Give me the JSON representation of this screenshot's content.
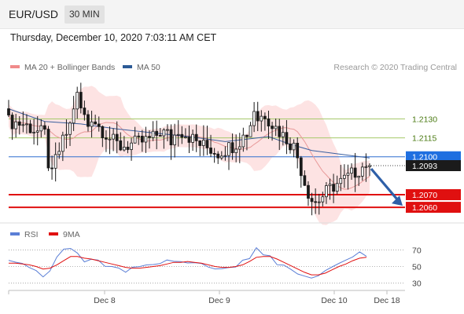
{
  "header": {
    "pair": "EUR/USD",
    "interval": "30 MIN"
  },
  "timestamp": "Thursday, December 10, 2020 7:03:11 AM CET",
  "credit": "Research © 2020 Trading Central",
  "legend_main": [
    {
      "label": "MA 20 + Bollinger Bands",
      "color": "#f08a8a"
    },
    {
      "label": "MA 50",
      "color": "#2b5a96"
    }
  ],
  "legend_rsi": [
    {
      "label": "RSI",
      "color": "#5b7fd6"
    },
    {
      "label": "9MA",
      "color": "#e01010"
    }
  ],
  "colors": {
    "resistance": "#a6c96a",
    "support": "#e01010",
    "current": "#2f6fcf",
    "candle": "#1a1a1a",
    "band_fill": "#fde0e0",
    "ma20": "#e89a9a",
    "ma50": "#3a5f9f",
    "arrow": "#2e5fa8",
    "current_tag": "#1f6fe0",
    "support_tag": "#e01010",
    "last_tag": "#1b1b1b"
  },
  "chart_data": [
    {
      "type": "candlestick",
      "title": "EUR/USD",
      "x_tick_labels": [
        "Dec 8",
        "Dec 9",
        "Dec 10",
        "Dec 18"
      ],
      "ylim": [
        1.2047,
        1.2162
      ],
      "levels": [
        {
          "value": 1.213,
          "label": "1.2130",
          "kind": "resistance"
        },
        {
          "value": 1.2115,
          "label": "1.2115",
          "kind": "resistance"
        },
        {
          "value": 1.21,
          "label": "1.2100",
          "kind": "current"
        },
        {
          "value": 1.2093,
          "label": "1.2093",
          "kind": "last"
        },
        {
          "value": 1.207,
          "label": "1.2070",
          "kind": "support"
        },
        {
          "value": 1.206,
          "label": "1.2060",
          "kind": "support"
        }
      ],
      "close_path": [
        [
          0,
          1.2128
        ],
        [
          4,
          1.2126
        ],
        [
          8,
          1.212
        ],
        [
          10,
          1.2118
        ],
        [
          11,
          1.2095
        ],
        [
          12,
          1.2085
        ],
        [
          13,
          1.2098
        ],
        [
          15,
          1.2112
        ],
        [
          17,
          1.2125
        ],
        [
          18,
          1.214
        ],
        [
          19,
          1.2148
        ],
        [
          20,
          1.2138
        ],
        [
          22,
          1.2125
        ],
        [
          23,
          1.2132
        ],
        [
          25,
          1.2124
        ],
        [
          27,
          1.2118
        ],
        [
          29,
          1.2112
        ],
        [
          31,
          1.2108
        ],
        [
          34,
          1.211
        ],
        [
          37,
          1.2112
        ],
        [
          40,
          1.2115
        ],
        [
          42,
          1.212
        ],
        [
          44,
          1.2118
        ],
        [
          45,
          1.2112
        ],
        [
          47,
          1.2122
        ],
        [
          49,
          1.2118
        ],
        [
          51,
          1.2114
        ],
        [
          53,
          1.211
        ],
        [
          56,
          1.2106
        ],
        [
          58,
          1.2103
        ],
        [
          60,
          1.2106
        ],
        [
          62,
          1.2109
        ],
        [
          64,
          1.2113
        ],
        [
          66,
          1.2119
        ],
        [
          67,
          1.2126
        ],
        [
          68,
          1.2138
        ],
        [
          69,
          1.213
        ],
        [
          71,
          1.2134
        ],
        [
          73,
          1.2126
        ],
        [
          75,
          1.212
        ],
        [
          77,
          1.2114
        ],
        [
          79,
          1.2108
        ],
        [
          80,
          1.21
        ],
        [
          81,
          1.209
        ],
        [
          82,
          1.208
        ],
        [
          83,
          1.2072
        ],
        [
          84,
          1.2066
        ],
        [
          85,
          1.2064
        ],
        [
          86,
          1.2066
        ],
        [
          88,
          1.2072
        ],
        [
          90,
          1.2077
        ],
        [
          92,
          1.208
        ],
        [
          94,
          1.2084
        ],
        [
          96,
          1.2088
        ],
        [
          98,
          1.2092
        ],
        [
          99,
          1.2095
        ],
        [
          100,
          1.2093
        ]
      ],
      "candle_count": 101,
      "ma50_path": [
        [
          0,
          1.2138
        ],
        [
          10,
          1.2128
        ],
        [
          20,
          1.2126
        ],
        [
          30,
          1.2122
        ],
        [
          40,
          1.2119
        ],
        [
          50,
          1.2116
        ],
        [
          60,
          1.2112
        ],
        [
          66,
          1.2114
        ],
        [
          72,
          1.2116
        ],
        [
          78,
          1.211
        ],
        [
          84,
          1.2105
        ],
        [
          92,
          1.2102
        ],
        [
          100,
          1.2099
        ]
      ]
    },
    {
      "type": "line",
      "title": "RSI",
      "ylim": [
        25,
        75
      ],
      "y_ticks": [
        70,
        50,
        30
      ],
      "series": [
        {
          "name": "RSI",
          "color": "#5b7fd6",
          "values": [
            55,
            54,
            52,
            50,
            44,
            35,
            47,
            60,
            68,
            72,
            64,
            58,
            60,
            55,
            52,
            50,
            48,
            46,
            47,
            48,
            50,
            52,
            54,
            56,
            58,
            55,
            57,
            54,
            52,
            50,
            48,
            47,
            49,
            51,
            55,
            62,
            70,
            64,
            62,
            55,
            50,
            46,
            40,
            36,
            34,
            40,
            45,
            50,
            55,
            58,
            62,
            66,
            63
          ]
        },
        {
          "name": "9MA",
          "color": "#e01010",
          "values": [
            54,
            54,
            53,
            52,
            50,
            47,
            48,
            52,
            57,
            62,
            62,
            60,
            59,
            57,
            55,
            53,
            51,
            49,
            48,
            48,
            49,
            50,
            51,
            53,
            55,
            55,
            56,
            55,
            54,
            52,
            50,
            49,
            49,
            50,
            52,
            56,
            61,
            62,
            62,
            59,
            55,
            51,
            47,
            43,
            40,
            40,
            42,
            46,
            50,
            53,
            57,
            60,
            61
          ]
        }
      ]
    }
  ]
}
